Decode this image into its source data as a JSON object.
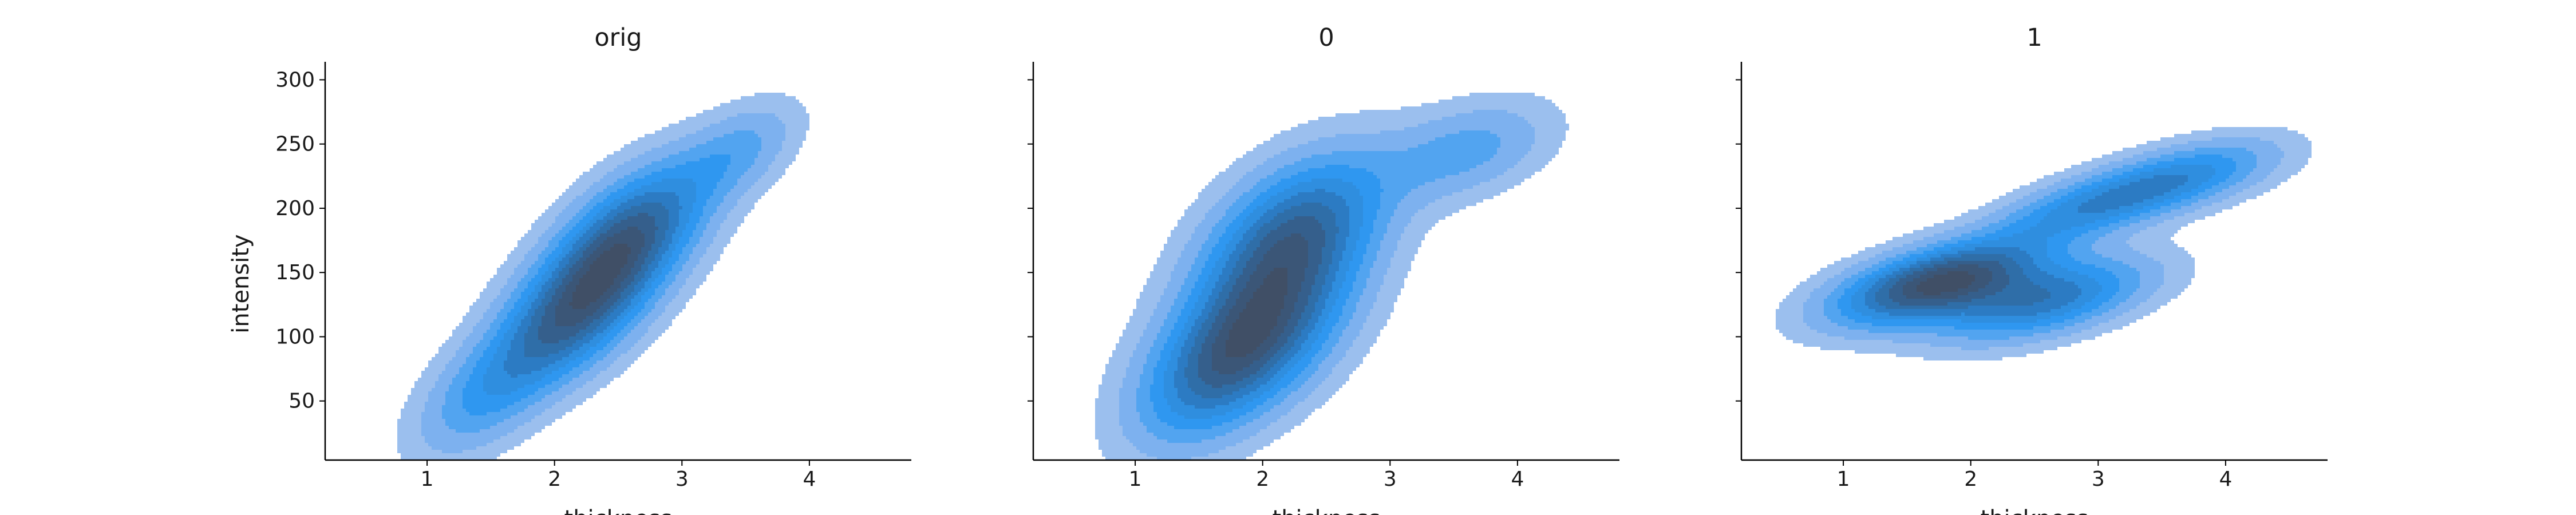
{
  "chart_data": [
    {
      "type": "kde2d",
      "title": "orig",
      "xlabel": "thickness",
      "ylabel": "intensity",
      "xlim": [
        0.2,
        4.8
      ],
      "ylim": [
        4,
        314
      ],
      "xticks": [
        1,
        2,
        3,
        4
      ],
      "yticks": [
        50,
        100,
        150,
        200,
        250,
        300
      ],
      "show_ytick_labels": true,
      "color": "#3b93e6",
      "grid": false,
      "modes": [
        {
          "x": 2.15,
          "y": 118,
          "weight": 1.0
        },
        {
          "x": 2.6,
          "y": 180,
          "weight": 1.0
        }
      ]
    },
    {
      "type": "kde2d",
      "title": "0",
      "xlabel": "thickness",
      "ylabel": "",
      "xlim": [
        0.2,
        4.8
      ],
      "ylim": [
        4,
        314
      ],
      "xticks": [
        1,
        2,
        3,
        4
      ],
      "yticks": [
        50,
        100,
        150,
        200,
        250,
        300
      ],
      "show_ytick_labels": false,
      "color": "#3b93e6",
      "grid": false,
      "modes": [
        {
          "x": 1.95,
          "y": 103,
          "weight": 1.0
        },
        {
          "x": 2.25,
          "y": 180,
          "weight": 1.0
        }
      ]
    },
    {
      "type": "kde2d",
      "title": "1",
      "xlabel": "thickness",
      "ylabel": "",
      "xlim": [
        0.2,
        4.8
      ],
      "ylim": [
        4,
        314
      ],
      "xticks": [
        1,
        2,
        3,
        4
      ],
      "yticks": [
        50,
        100,
        150,
        200,
        250,
        300
      ],
      "show_ytick_labels": false,
      "color": "#3b93e6",
      "grid": false,
      "modes": [
        {
          "x": 1.75,
          "y": 142,
          "weight": 1.0
        },
        {
          "x": 2.6,
          "y": 128,
          "weight": 0.6
        }
      ]
    }
  ]
}
